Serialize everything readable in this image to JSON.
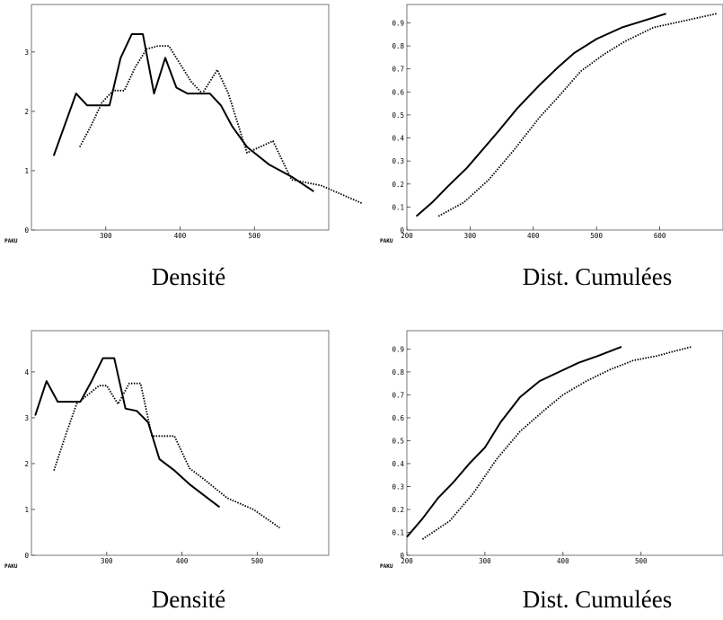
{
  "x_axis_name": "PAKU",
  "chart_data": [
    {
      "type": "line",
      "caption": "Densité",
      "xlim": [
        200,
        600
      ],
      "ylim": [
        0,
        3.8
      ],
      "xticks": [
        300,
        400,
        500
      ],
      "yticks": [
        0,
        1,
        2,
        3
      ],
      "series": [
        {
          "style": "solid",
          "x": [
            230,
            260,
            275,
            290,
            305,
            320,
            335,
            350,
            365,
            380,
            395,
            410,
            425,
            440,
            455,
            470,
            490,
            520,
            550,
            580
          ],
          "y": [
            1.25,
            2.3,
            2.1,
            2.1,
            2.1,
            2.9,
            3.3,
            3.3,
            2.3,
            2.9,
            2.4,
            2.3,
            2.3,
            2.3,
            2.1,
            1.75,
            1.4,
            1.1,
            0.9,
            0.65
          ]
        },
        {
          "style": "dotted",
          "x": [
            265,
            280,
            295,
            310,
            325,
            340,
            355,
            370,
            385,
            400,
            415,
            430,
            450,
            465,
            490,
            525,
            550,
            590,
            645
          ],
          "y": [
            1.4,
            1.75,
            2.15,
            2.35,
            2.35,
            2.75,
            3.05,
            3.1,
            3.1,
            2.8,
            2.5,
            2.3,
            2.7,
            2.3,
            1.3,
            1.5,
            0.85,
            0.75,
            0.45
          ]
        }
      ]
    },
    {
      "type": "line",
      "caption": "Dist. Cumulées",
      "xlim": [
        200,
        700
      ],
      "ylim": [
        0,
        0.98
      ],
      "xticks": [
        200,
        300,
        400,
        500,
        600
      ],
      "yticks": [
        0,
        0.1,
        0.2,
        0.3,
        0.4,
        0.5,
        0.6,
        0.7,
        0.8,
        0.9
      ],
      "series": [
        {
          "style": "solid",
          "x": [
            215,
            240,
            265,
            295,
            320,
            345,
            375,
            410,
            440,
            465,
            500,
            540,
            575,
            610
          ],
          "y": [
            0.06,
            0.12,
            0.19,
            0.27,
            0.35,
            0.43,
            0.53,
            0.63,
            0.71,
            0.77,
            0.83,
            0.88,
            0.91,
            0.94
          ]
        },
        {
          "style": "dotted",
          "x": [
            250,
            290,
            330,
            370,
            410,
            440,
            475,
            510,
            545,
            590,
            640,
            690
          ],
          "y": [
            0.06,
            0.12,
            0.22,
            0.35,
            0.49,
            0.58,
            0.69,
            0.76,
            0.82,
            0.88,
            0.91,
            0.94
          ]
        }
      ]
    },
    {
      "type": "line",
      "caption": "Densité",
      "xlim": [
        200,
        595
      ],
      "ylim": [
        0,
        4.9
      ],
      "xticks": [
        300,
        400,
        500
      ],
      "yticks": [
        0,
        1,
        2,
        3,
        4
      ],
      "series": [
        {
          "style": "solid",
          "x": [
            205,
            220,
            235,
            250,
            265,
            280,
            295,
            310,
            325,
            340,
            355,
            370,
            390,
            410,
            430,
            450
          ],
          "y": [
            3.05,
            3.8,
            3.35,
            3.35,
            3.35,
            3.8,
            4.3,
            4.3,
            3.2,
            3.15,
            2.9,
            2.1,
            1.85,
            1.55,
            1.3,
            1.05
          ]
        },
        {
          "style": "dotted",
          "x": [
            230,
            245,
            260,
            275,
            290,
            300,
            315,
            330,
            345,
            360,
            375,
            390,
            410,
            430,
            460,
            495,
            530
          ],
          "y": [
            1.85,
            2.6,
            3.3,
            3.5,
            3.7,
            3.7,
            3.3,
            3.75,
            3.75,
            2.6,
            2.6,
            2.6,
            1.9,
            1.65,
            1.25,
            1.0,
            0.6
          ]
        }
      ]
    },
    {
      "type": "line",
      "caption": "Dist. Cumulées",
      "xlim": [
        200,
        605
      ],
      "ylim": [
        0,
        0.98
      ],
      "xticks": [
        200,
        300,
        400,
        500
      ],
      "yticks": [
        0,
        0.1,
        0.2,
        0.3,
        0.4,
        0.5,
        0.6,
        0.7,
        0.8,
        0.9
      ],
      "series": [
        {
          "style": "solid",
          "x": [
            200,
            220,
            240,
            260,
            280,
            300,
            320,
            345,
            370,
            395,
            420,
            445,
            475
          ],
          "y": [
            0.08,
            0.16,
            0.25,
            0.32,
            0.4,
            0.47,
            0.58,
            0.69,
            0.76,
            0.8,
            0.84,
            0.87,
            0.91
          ]
        },
        {
          "style": "dotted",
          "x": [
            220,
            255,
            285,
            315,
            345,
            375,
            400,
            430,
            460,
            490,
            520,
            565
          ],
          "y": [
            0.07,
            0.15,
            0.27,
            0.42,
            0.54,
            0.63,
            0.7,
            0.76,
            0.81,
            0.85,
            0.87,
            0.91
          ]
        }
      ]
    }
  ]
}
